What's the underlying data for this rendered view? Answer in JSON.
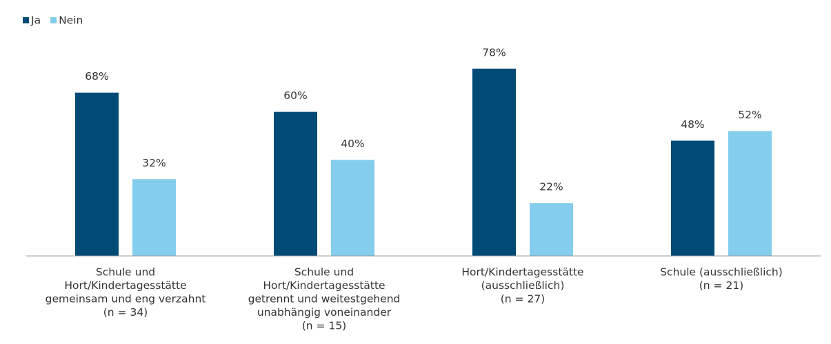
{
  "chart_data": {
    "type": "bar",
    "categories": [
      [
        "Schule und",
        "Hort/Kindertagesstätte",
        "gemeinsam und eng verzahnt",
        "(n = 34)"
      ],
      [
        "Schule und",
        "Hort/Kindertagesstätte",
        "getrennt und weitestgehend",
        "unabhängig voneinander",
        "(n = 15)"
      ],
      [
        "Hort/Kindertagesstätte",
        "(ausschließlich)",
        "(n = 27)"
      ],
      [
        "Schule (ausschließlich)",
        "(n = 21)"
      ]
    ],
    "series": [
      {
        "name": "Ja",
        "color": "#004a76",
        "values": [
          68,
          60,
          78,
          48
        ],
        "value_labels": [
          "68%",
          "60%",
          "78%",
          "48%"
        ]
      },
      {
        "name": "Nein",
        "color": "#84cdec",
        "values": [
          32,
          40,
          22,
          52
        ],
        "value_labels": [
          "32%",
          "40%",
          "22%",
          "52%"
        ]
      }
    ],
    "ylim": [
      0,
      100
    ],
    "legend": "top-left"
  }
}
